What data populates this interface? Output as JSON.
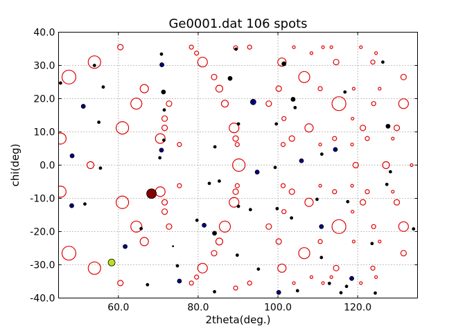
{
  "chart_data": {
    "type": "scatter",
    "title": "Ge0001.dat 106 spots",
    "xlabel": "2theta(deg.)",
    "ylabel": "chi(deg)",
    "xlim": [
      45,
      135
    ],
    "ylim": [
      -40,
      40
    ],
    "x_ticks": [
      60,
      80,
      100,
      120
    ],
    "x_tick_labels": [
      "60.0",
      "80.0",
      "100.0",
      "120.0"
    ],
    "y_ticks": [
      40,
      30,
      20,
      10,
      0,
      -10,
      -20,
      -30,
      -40
    ],
    "y_tick_labels": [
      "40.0",
      "30.0",
      "20.0",
      "10.0",
      "0.0",
      "-10.0",
      "-20.0",
      "-30.0",
      "-40.0"
    ],
    "grid": true,
    "colors": {
      "simulated": "#e00000",
      "frame": "#000000",
      "grid": "#555555"
    },
    "series": [
      {
        "marker": "open circle",
        "color": "#e00000",
        "points": [
          [
            60.5,
            35.5,
            4
          ],
          [
            78.3,
            35.5,
            3
          ],
          [
            79.6,
            33.7,
            3
          ],
          [
            89.4,
            35.3,
            3
          ],
          [
            92.9,
            35.5,
            3
          ],
          [
            104.0,
            35.5,
            2
          ],
          [
            108.4,
            33.7,
            2
          ],
          [
            111.3,
            35.5,
            2
          ],
          [
            113.4,
            35.5,
            2
          ],
          [
            120.8,
            35.5,
            2
          ],
          [
            124.6,
            33.7,
            2
          ],
          [
            54.0,
            31.0,
            9
          ],
          [
            81.1,
            31.0,
            7
          ],
          [
            101.0,
            31.0,
            6
          ],
          [
            114.6,
            31.0,
            4
          ],
          [
            123.8,
            31.0,
            3
          ],
          [
            47.6,
            26.5,
            10
          ],
          [
            84.0,
            26.5,
            4
          ],
          [
            106.6,
            26.5,
            8
          ],
          [
            131.5,
            26.5,
            4
          ],
          [
            66.5,
            23.0,
            6
          ],
          [
            85.3,
            23.0,
            5
          ],
          [
            100.2,
            23.0,
            4
          ],
          [
            110.6,
            23.0,
            3
          ],
          [
            119.0,
            23.0,
            2
          ],
          [
            125.5,
            23.0,
            2
          ],
          [
            64.5,
            18.5,
            8
          ],
          [
            72.7,
            18.5,
            4
          ],
          [
            86.7,
            18.5,
            5
          ],
          [
            97.7,
            18.5,
            4
          ],
          [
            115.3,
            18.5,
            10
          ],
          [
            124.0,
            18.5,
            3
          ],
          [
            131.5,
            18.5,
            7
          ],
          [
            71.6,
            14.0,
            4
          ],
          [
            101.5,
            14.0,
            3
          ],
          [
            118.7,
            14.0,
            2
          ],
          [
            61.0,
            11.2,
            9
          ],
          [
            71.6,
            11.2,
            4
          ],
          [
            89.0,
            11.2,
            7
          ],
          [
            107.8,
            11.2,
            6
          ],
          [
            121.3,
            11.2,
            4
          ],
          [
            129.8,
            11.2,
            4
          ],
          [
            45.5,
            8.0,
            8
          ],
          [
            70.5,
            8.0,
            7
          ],
          [
            89.4,
            8.0,
            4
          ],
          [
            103.5,
            8.0,
            4
          ],
          [
            114.2,
            8.0,
            3
          ],
          [
            122.4,
            8.0,
            3
          ],
          [
            128.8,
            8.0,
            2
          ],
          [
            75.3,
            6.2,
            3
          ],
          [
            89.8,
            6.2,
            3
          ],
          [
            101.3,
            6.2,
            3
          ],
          [
            110.6,
            6.2,
            2
          ],
          [
            118.6,
            6.2,
            2
          ],
          [
            53.0,
            0.0,
            5
          ],
          [
            90.2,
            0.0,
            9
          ],
          [
            119.5,
            0.0,
            4
          ],
          [
            127.1,
            0.0,
            5
          ],
          [
            133.5,
            0.0,
            2
          ],
          [
            75.3,
            -6.2,
            3
          ],
          [
            89.8,
            -6.2,
            3
          ],
          [
            101.3,
            -6.2,
            3
          ],
          [
            110.6,
            -6.2,
            2
          ],
          [
            118.6,
            -6.2,
            2
          ],
          [
            45.5,
            -8.0,
            8
          ],
          [
            70.5,
            -8.0,
            7
          ],
          [
            89.4,
            -8.0,
            4
          ],
          [
            103.5,
            -8.0,
            4
          ],
          [
            114.2,
            -8.0,
            3
          ],
          [
            122.4,
            -8.0,
            3
          ],
          [
            128.8,
            -8.0,
            2
          ],
          [
            61.0,
            -11.2,
            9
          ],
          [
            71.6,
            -11.2,
            4
          ],
          [
            89.0,
            -11.2,
            7
          ],
          [
            107.8,
            -11.2,
            6
          ],
          [
            121.3,
            -11.2,
            4
          ],
          [
            129.8,
            -11.2,
            4
          ],
          [
            71.6,
            -14.0,
            4
          ],
          [
            101.5,
            -14.0,
            3
          ],
          [
            118.7,
            -14.0,
            2
          ],
          [
            64.5,
            -18.5,
            8
          ],
          [
            72.7,
            -18.5,
            4
          ],
          [
            86.7,
            -18.5,
            8
          ],
          [
            97.7,
            -18.5,
            4
          ],
          [
            115.3,
            -18.5,
            10
          ],
          [
            124.0,
            -18.5,
            3
          ],
          [
            131.5,
            -18.5,
            7
          ],
          [
            66.5,
            -23.0,
            6
          ],
          [
            85.3,
            -23.0,
            5
          ],
          [
            100.2,
            -23.0,
            4
          ],
          [
            110.6,
            -23.0,
            3
          ],
          [
            119.0,
            -23.0,
            2
          ],
          [
            125.5,
            -23.0,
            2
          ],
          [
            47.6,
            -26.5,
            10
          ],
          [
            84.0,
            -26.5,
            4
          ],
          [
            106.6,
            -26.5,
            8
          ],
          [
            131.5,
            -26.5,
            4
          ],
          [
            54.0,
            -31.0,
            9
          ],
          [
            81.1,
            -31.0,
            7
          ],
          [
            101.0,
            -31.0,
            6
          ],
          [
            114.6,
            -31.0,
            4
          ],
          [
            123.8,
            -31.0,
            3
          ],
          [
            60.5,
            -35.5,
            4
          ],
          [
            78.3,
            -35.5,
            3
          ],
          [
            79.6,
            -33.7,
            3
          ],
          [
            89.4,
            -37.0,
            3
          ],
          [
            92.9,
            -35.5,
            3
          ],
          [
            104.0,
            -35.5,
            2
          ],
          [
            108.4,
            -33.7,
            2
          ],
          [
            111.3,
            -35.5,
            2
          ],
          [
            113.4,
            -33.7,
            2
          ],
          [
            120.8,
            -35.5,
            2
          ],
          [
            124.6,
            -33.7,
            2
          ]
        ]
      },
      {
        "marker": "filled circle",
        "points": [
          [
            54.0,
            30.0,
            2,
            "#000000"
          ],
          [
            70.9,
            30.2,
            3,
            "#000080"
          ],
          [
            89.5,
            34.9,
            2,
            "#000000"
          ],
          [
            70.8,
            33.4,
            2,
            "#000000"
          ],
          [
            101.5,
            30.5,
            3,
            "#000000"
          ],
          [
            126.3,
            31.0,
            2,
            "#000000"
          ],
          [
            45.5,
            24.7,
            2,
            "#000000"
          ],
          [
            51.2,
            17.7,
            3,
            "#000080"
          ],
          [
            56.2,
            23.5,
            2,
            "#000000"
          ],
          [
            71.3,
            22.0,
            3,
            "#000000"
          ],
          [
            88.0,
            26.1,
            3,
            "#000000"
          ],
          [
            93.8,
            19.0,
            4,
            "#000080"
          ],
          [
            103.8,
            19.8,
            3,
            "#000000"
          ],
          [
            104.3,
            17.3,
            2,
            "#000000"
          ],
          [
            116.8,
            22.0,
            2,
            "#000000"
          ],
          [
            71.5,
            16.6,
            2,
            "#000000"
          ],
          [
            55.1,
            12.9,
            2,
            "#000000"
          ],
          [
            90.1,
            12.4,
            2,
            "#000000"
          ],
          [
            99.6,
            12.4,
            2,
            "#000000"
          ],
          [
            127.6,
            11.7,
            3,
            "#000000"
          ],
          [
            48.4,
            2.8,
            3,
            "#000080"
          ],
          [
            71.4,
            7.5,
            2,
            "#000000"
          ],
          [
            70.8,
            4.5,
            3,
            "#000080"
          ],
          [
            84.2,
            5.5,
            2,
            "#000000"
          ],
          [
            114.4,
            4.7,
            3,
            "#000080"
          ],
          [
            111.0,
            3.3,
            2,
            "#000000"
          ],
          [
            105.9,
            1.3,
            3,
            "#000080"
          ],
          [
            70.4,
            2.2,
            2,
            "#000000"
          ],
          [
            55.5,
            -0.9,
            2,
            "#000000"
          ],
          [
            94.8,
            -2.1,
            3,
            "#000080"
          ],
          [
            99.3,
            -0.7,
            2,
            "#000000"
          ],
          [
            128.2,
            -2.0,
            2,
            "#000000"
          ],
          [
            82.8,
            -5.5,
            2,
            "#000000"
          ],
          [
            85.3,
            -4.8,
            2,
            "#000000"
          ],
          [
            127.3,
            -5.8,
            2,
            "#000000"
          ],
          [
            68.3,
            -8.6,
            7,
            "#800000"
          ],
          [
            48.3,
            -12.2,
            3,
            "#000080"
          ],
          [
            51.6,
            -11.7,
            2,
            "#000000"
          ],
          [
            109.8,
            -10.3,
            2,
            "#000000"
          ],
          [
            117.5,
            -11.0,
            2,
            "#000000"
          ],
          [
            90.1,
            -12.4,
            2,
            "#000000"
          ],
          [
            93.1,
            -13.4,
            2,
            "#000000"
          ],
          [
            99.8,
            -13.1,
            2,
            "#000000"
          ],
          [
            103.4,
            -15.9,
            2,
            "#000000"
          ],
          [
            79.7,
            -16.6,
            2,
            "#000000"
          ],
          [
            81.5,
            -18.1,
            3,
            "#000080"
          ],
          [
            84.1,
            -20.5,
            3,
            "#000000"
          ],
          [
            110.9,
            -18.5,
            3,
            "#000080"
          ],
          [
            65.7,
            -19.1,
            2,
            "#000000"
          ],
          [
            61.7,
            -24.5,
            3,
            "#000080"
          ],
          [
            73.7,
            -24.4,
            1,
            "#000000"
          ],
          [
            89.8,
            -27.1,
            2,
            "#000000"
          ],
          [
            110.9,
            -27.8,
            2,
            "#000000"
          ],
          [
            123.6,
            -23.6,
            2,
            "#000000"
          ],
          [
            58.3,
            -29.3,
            5,
            "#b8e020"
          ],
          [
            74.8,
            -30.3,
            2,
            "#000000"
          ],
          [
            95.1,
            -31.3,
            2,
            "#000000"
          ],
          [
            75.3,
            -34.9,
            3,
            "#000080"
          ],
          [
            67.3,
            -36.0,
            2,
            "#000000"
          ],
          [
            84.1,
            -38.1,
            2,
            "#000000"
          ],
          [
            100.2,
            -38.3,
            3,
            "#000080"
          ],
          [
            112.9,
            -35.6,
            2,
            "#000000"
          ],
          [
            117.2,
            -36.5,
            2,
            "#000000"
          ],
          [
            118.5,
            -34.1,
            3,
            "#000080"
          ],
          [
            115.8,
            -38.4,
            2,
            "#000000"
          ],
          [
            134.0,
            -19.2,
            2,
            "#000000"
          ],
          [
            124.4,
            -38.5,
            2,
            "#000000"
          ],
          [
            104.9,
            -37.8,
            2,
            "#000000"
          ]
        ]
      }
    ]
  }
}
